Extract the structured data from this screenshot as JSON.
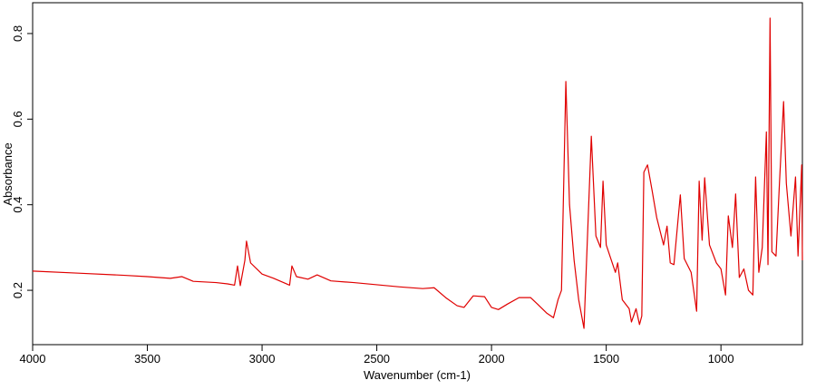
{
  "chart_data": {
    "type": "line",
    "x_label": "Wavenumber (cm-1)",
    "y_label": "Absorbance",
    "x": [
      4000,
      3800,
      3600,
      3500,
      3400,
      3350,
      3300,
      3200,
      3150,
      3120,
      3107,
      3095,
      3075,
      3068,
      3050,
      3000,
      2950,
      2880,
      2870,
      2850,
      2800,
      2760,
      2700,
      2600,
      2500,
      2400,
      2300,
      2250,
      2200,
      2150,
      2120,
      2080,
      2030,
      2000,
      1970,
      1930,
      1880,
      1830,
      1800,
      1760,
      1730,
      1710,
      1695,
      1676,
      1660,
      1640,
      1620,
      1597,
      1565,
      1545,
      1525,
      1514,
      1500,
      1480,
      1460,
      1450,
      1430,
      1400,
      1390,
      1370,
      1355,
      1345,
      1336,
      1320,
      1300,
      1280,
      1250,
      1235,
      1221,
      1205,
      1177,
      1160,
      1130,
      1106,
      1095,
      1082,
      1071,
      1050,
      1020,
      1000,
      980,
      968,
      950,
      936,
      920,
      900,
      880,
      861,
      849,
      835,
      820,
      802,
      795,
      786,
      778,
      760,
      745,
      727,
      715,
      695,
      675,
      664,
      648,
      645
    ],
    "values": [
      0.245,
      0.24,
      0.235,
      0.232,
      0.228,
      0.232,
      0.221,
      0.218,
      0.215,
      0.212,
      0.257,
      0.211,
      0.27,
      0.315,
      0.264,
      0.238,
      0.228,
      0.212,
      0.257,
      0.232,
      0.226,
      0.236,
      0.222,
      0.218,
      0.213,
      0.208,
      0.204,
      0.206,
      0.183,
      0.164,
      0.16,
      0.187,
      0.185,
      0.16,
      0.155,
      0.168,
      0.183,
      0.183,
      0.168,
      0.147,
      0.136,
      0.178,
      0.2,
      0.688,
      0.4,
      0.27,
      0.178,
      0.111,
      0.56,
      0.327,
      0.3,
      0.455,
      0.306,
      0.274,
      0.242,
      0.264,
      0.178,
      0.157,
      0.126,
      0.157,
      0.12,
      0.14,
      0.476,
      0.493,
      0.433,
      0.37,
      0.306,
      0.35,
      0.264,
      0.26,
      0.423,
      0.274,
      0.242,
      0.151,
      0.455,
      0.317,
      0.463,
      0.306,
      0.264,
      0.25,
      0.189,
      0.374,
      0.3,
      0.425,
      0.23,
      0.25,
      0.2,
      0.189,
      0.465,
      0.242,
      0.3,
      0.57,
      0.26,
      0.836,
      0.29,
      0.28,
      0.45,
      0.641,
      0.45,
      0.327,
      0.465,
      0.28,
      0.493,
      0.27
    ],
    "color": "#e00000",
    "xlim": [
      4000,
      645
    ],
    "xticks": [
      4000,
      3500,
      3000,
      2500,
      2000,
      1500,
      1000
    ],
    "ylim": [
      0.073,
      0.872
    ],
    "yticks": [
      0.2,
      0.4,
      0.6,
      0.8
    ]
  }
}
